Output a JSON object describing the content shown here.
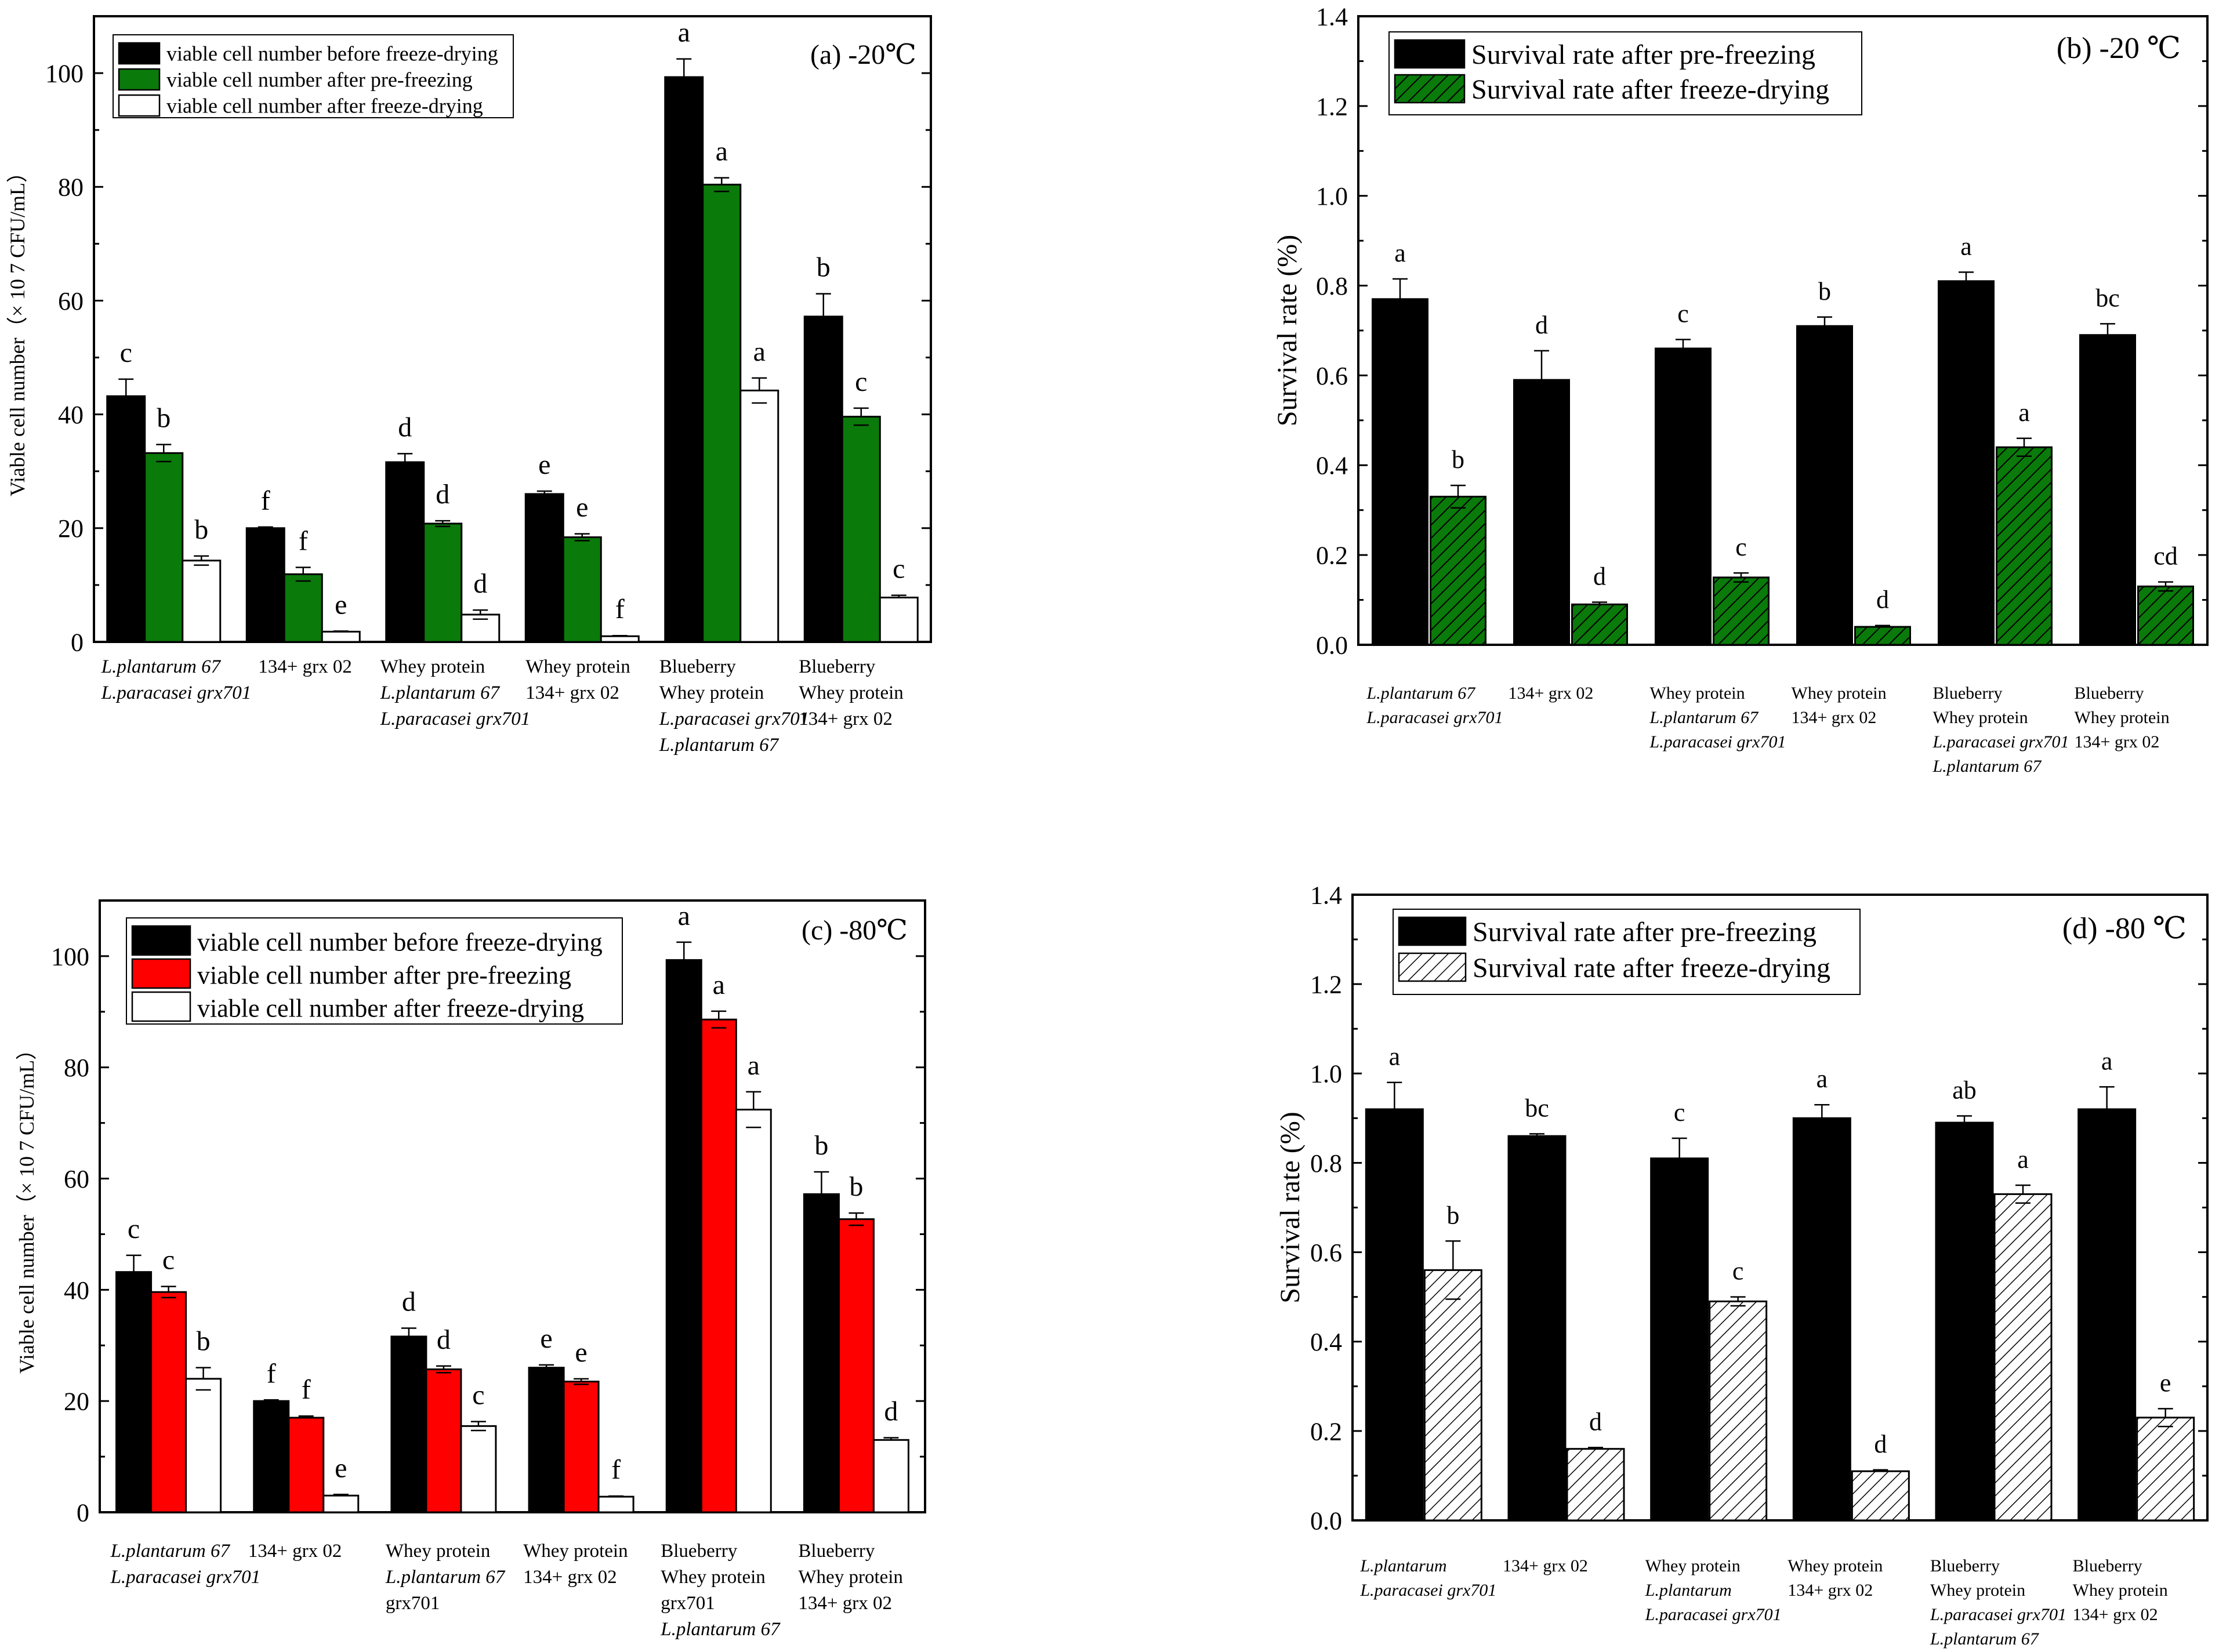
{
  "chart_data": [
    {
      "type": "bar",
      "panel": "a",
      "title": "(a) -20℃",
      "ylabel": "Viable cell number（× 10 7 CFU/mL）",
      "ylim": [
        0,
        110
      ],
      "yticks": [
        0,
        20,
        40,
        60,
        80,
        100
      ],
      "legend_position": "top-left",
      "categories": [
        [
          "L.plantarum 67",
          "L.paracasei grx701"
        ],
        [
          "134+ grx 02"
        ],
        [
          "Whey protein",
          "L.plantarum 67",
          "L.paracasei grx701"
        ],
        [
          "Whey protein",
          "134+ grx 02"
        ],
        [
          "Blueberry",
          "Whey protein",
          "L.paracasei grx701",
          "L.plantarum 67"
        ],
        [
          "Blueberry",
          "Whey protein",
          "134+ grx 02"
        ]
      ],
      "series": [
        {
          "name": "viable cell number before freeze-drying",
          "color": "#000000",
          "hatch": "none",
          "values": [
            43.2,
            20.0,
            31.6,
            26.0,
            99.3,
            57.2
          ],
          "errors": [
            3.0,
            0.2,
            1.5,
            0.5,
            3.2,
            4.0
          ],
          "letters": [
            "c",
            "f",
            "d",
            "e",
            "a",
            "b"
          ]
        },
        {
          "name": "viable cell number after pre-freezing",
          "color": "#0a7a0a",
          "hatch": "none",
          "values": [
            33.2,
            11.9,
            20.8,
            18.4,
            80.4,
            39.6
          ],
          "errors": [
            1.5,
            1.2,
            0.5,
            0.6,
            1.2,
            1.5
          ],
          "letters": [
            "b",
            "f",
            "d",
            "e",
            "a",
            "c"
          ]
        },
        {
          "name": "viable cell number after freeze-drying",
          "color": "#ffffff",
          "hatch": "none",
          "values": [
            14.3,
            1.8,
            4.8,
            1.0,
            44.2,
            7.8
          ],
          "errors": [
            0.8,
            0.1,
            0.8,
            0.1,
            2.2,
            0.4
          ],
          "letters": [
            "b",
            "e",
            "d",
            "f",
            "a",
            "c"
          ]
        }
      ]
    },
    {
      "type": "bar",
      "panel": "b",
      "title": "(b) -20 ℃",
      "ylabel": "Survival rate (%)",
      "ylim": [
        0,
        1.4
      ],
      "yticks": [
        "0.0",
        "0.2",
        "0.4",
        "0.6",
        "0.8",
        "1.0",
        "1.2",
        "1.4"
      ],
      "legend_position": "top-left",
      "categories": [
        [
          "L.plantarum 67",
          "L.paracasei grx701"
        ],
        [
          "134+ grx 02"
        ],
        [
          "Whey protein",
          "L.plantarum 67",
          "L.paracasei  grx701"
        ],
        [
          "Whey protein",
          "134+ grx 02"
        ],
        [
          "Blueberry",
          "Whey protein",
          "L.paracasei grx701",
          "L.plantarum 67"
        ],
        [
          "Blueberry",
          "Whey protein",
          "134+ grx 02"
        ]
      ],
      "series": [
        {
          "name": "Survival rate after pre-freezing",
          "color": "#000000",
          "hatch": "none",
          "values": [
            0.77,
            0.59,
            0.66,
            0.71,
            0.81,
            0.69
          ],
          "errors": [
            0.045,
            0.065,
            0.02,
            0.02,
            0.02,
            0.025
          ],
          "letters": [
            "a",
            "d",
            "c",
            "b",
            "a",
            "bc"
          ]
        },
        {
          "name": "Survival rate after freeze-drying",
          "color": "#0a7a0a",
          "hatch": "dark",
          "values": [
            0.33,
            0.09,
            0.15,
            0.04,
            0.44,
            0.13
          ],
          "errors": [
            0.025,
            0.005,
            0.01,
            0.003,
            0.02,
            0.01
          ],
          "letters": [
            "b",
            "d",
            "c",
            "d",
            "a",
            "cd"
          ]
        }
      ]
    },
    {
      "type": "bar",
      "panel": "c",
      "title": "(c) -80℃",
      "ylabel": "Viable cell number（× 10 7 CFU/mL）",
      "ylim": [
        0,
        110
      ],
      "yticks": [
        0,
        20,
        40,
        60,
        80,
        100
      ],
      "legend_position": "top-left",
      "categories": [
        [
          "L.plantarum 67",
          "L.paracasei grx701"
        ],
        [
          "134+ grx 02"
        ],
        [
          "Whey protein",
          "L.plantarum 67",
          "grx701"
        ],
        [
          "Whey protein",
          "134+ grx 02"
        ],
        [
          "Blueberry",
          "Whey protein",
          "grx701",
          "L.plantarum 67"
        ],
        [
          "Blueberry",
          "Whey protein",
          "134+ grx 02"
        ]
      ],
      "series": [
        {
          "name": "viable cell number before freeze-drying",
          "color": "#000000",
          "hatch": "none",
          "values": [
            43.2,
            20.0,
            31.6,
            26.0,
            99.3,
            57.2
          ],
          "errors": [
            3.0,
            0.2,
            1.5,
            0.5,
            3.2,
            4.0
          ],
          "letters": [
            "c",
            "f",
            "d",
            "e",
            "a",
            "b"
          ]
        },
        {
          "name": "viable cell number after pre-freezing",
          "color": "#ff0000",
          "hatch": "none",
          "values": [
            39.6,
            17.0,
            25.7,
            23.5,
            88.6,
            52.7
          ],
          "errors": [
            1.0,
            0.3,
            0.6,
            0.5,
            1.5,
            1.1
          ],
          "letters": [
            "c",
            "f",
            "d",
            "e",
            "a",
            "b"
          ]
        },
        {
          "name": "viable cell number after freeze-drying",
          "color": "#ffffff",
          "hatch": "none",
          "values": [
            24.0,
            3.0,
            15.5,
            2.8,
            72.4,
            13.0
          ],
          "errors": [
            2.0,
            0.2,
            0.8,
            0.1,
            3.2,
            0.4
          ],
          "letters": [
            "b",
            "e",
            "c",
            "f",
            "a",
            "d"
          ]
        }
      ]
    },
    {
      "type": "bar",
      "panel": "d",
      "title": "(d) -80 ℃",
      "ylabel": "Survival rate (%)",
      "ylim": [
        0,
        1.4
      ],
      "yticks": [
        "0.0",
        "0.2",
        "0.4",
        "0.6",
        "0.8",
        "1.0",
        "1.2",
        "1.4"
      ],
      "legend_position": "top-left",
      "categories": [
        [
          "L.plantarum",
          "L.paracasei grx701"
        ],
        [
          "134+ grx 02"
        ],
        [
          "Whey protein",
          "L.plantarum",
          "L.paracasei grx701"
        ],
        [
          "Whey protein",
          "134+ grx 02"
        ],
        [
          "Blueberry",
          "Whey protein",
          "L.paracasei grx701",
          "L.plantarum 67"
        ],
        [
          "Blueberry",
          "Whey protein",
          "134+ grx 02"
        ]
      ],
      "series": [
        {
          "name": "Survival rate after pre-freezing",
          "color": "#000000",
          "hatch": "none",
          "values": [
            0.92,
            0.86,
            0.81,
            0.9,
            0.89,
            0.92
          ],
          "errors": [
            0.06,
            0.005,
            0.045,
            0.03,
            0.015,
            0.05
          ],
          "letters": [
            "a",
            "bc",
            "c",
            "a",
            "ab",
            "a"
          ]
        },
        {
          "name": "Survival rate after freeze-drying",
          "color": "#ffffff",
          "hatch": "light",
          "values": [
            0.56,
            0.16,
            0.49,
            0.11,
            0.73,
            0.23
          ],
          "errors": [
            0.065,
            0.003,
            0.01,
            0.003,
            0.02,
            0.02
          ],
          "letters": [
            "b",
            "d",
            "c",
            "d",
            "a",
            "e"
          ]
        }
      ]
    }
  ]
}
